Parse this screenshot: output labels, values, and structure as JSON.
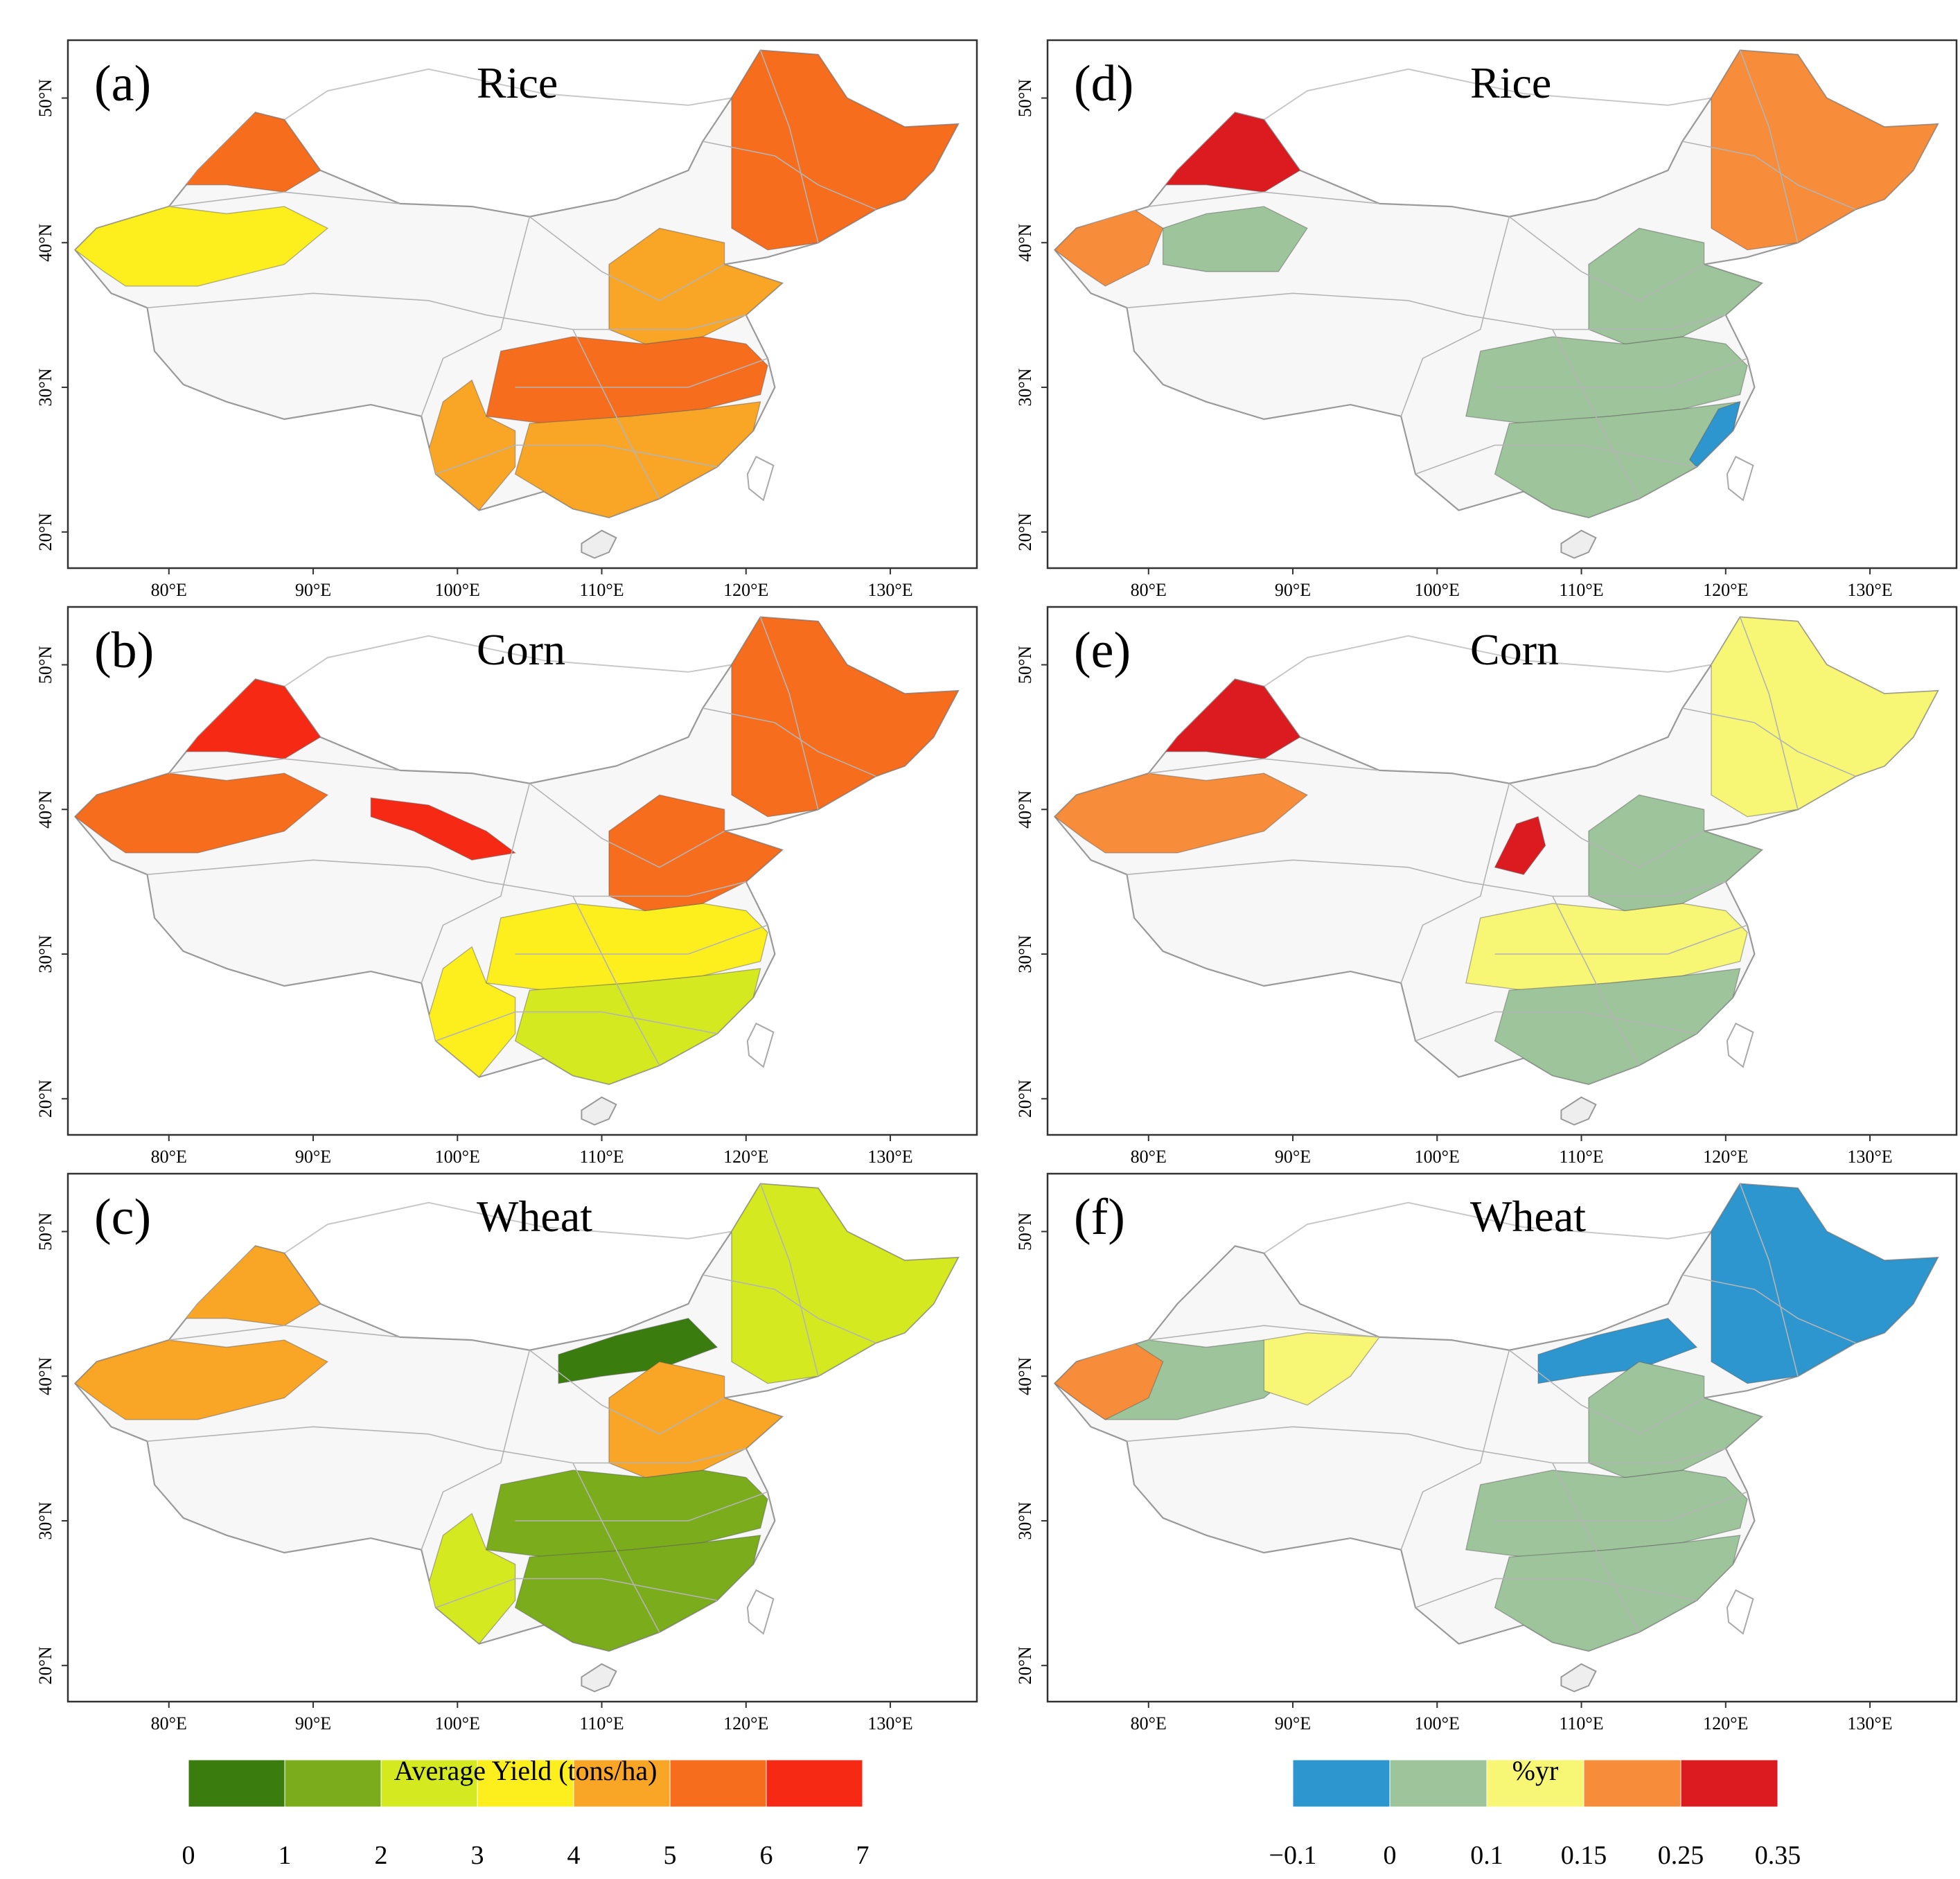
{
  "figure": {
    "axis_ticks": {
      "lon": [
        "80°E",
        "90°E",
        "100°E",
        "110°E",
        "120°E",
        "130°E"
      ],
      "lat": [
        "20°N",
        "30°N",
        "40°N",
        "50°N"
      ]
    },
    "panels": [
      {
        "id": "a",
        "letter": "(a)",
        "title": "Rice",
        "variable": "average_yield",
        "scale": "yield",
        "regions": [
          {
            "region": "Xinjiang north",
            "class": 5
          },
          {
            "region": "Xinjiang south",
            "class": 3
          },
          {
            "region": "Northeast",
            "class": 5
          },
          {
            "region": "North China Plain",
            "class": 4
          },
          {
            "region": "Yangtze basin",
            "class": 5
          },
          {
            "region": "South China",
            "class": 4
          },
          {
            "region": "Southwest",
            "class": 4
          }
        ]
      },
      {
        "id": "b",
        "letter": "(b)",
        "title": "Corn",
        "variable": "average_yield",
        "scale": "yield",
        "regions": [
          {
            "region": "Xinjiang north",
            "class": 6
          },
          {
            "region": "Xinjiang south",
            "class": 5
          },
          {
            "region": "Hexi corridor",
            "class": 6
          },
          {
            "region": "Northeast",
            "class": 5
          },
          {
            "region": "North China Plain",
            "class": 5
          },
          {
            "region": "Yangtze basin",
            "class": 3
          },
          {
            "region": "South China",
            "class": 2
          },
          {
            "region": "Southwest",
            "class": 3
          }
        ]
      },
      {
        "id": "c",
        "letter": "(c)",
        "title": "Wheat",
        "variable": "average_yield",
        "scale": "yield",
        "regions": [
          {
            "region": "Xinjiang north",
            "class": 4
          },
          {
            "region": "Xinjiang south",
            "class": 4
          },
          {
            "region": "Inner Mongolia",
            "class": 0
          },
          {
            "region": "Northeast",
            "class": 2
          },
          {
            "region": "North China Plain",
            "class": 4
          },
          {
            "region": "Yangtze basin",
            "class": 1
          },
          {
            "region": "South China",
            "class": 1
          },
          {
            "region": "Southwest",
            "class": 2
          }
        ]
      },
      {
        "id": "d",
        "letter": "(d)",
        "title": "Rice",
        "variable": "yield_trend",
        "scale": "trend",
        "regions": [
          {
            "region": "Xinjiang west",
            "class": 3
          },
          {
            "region": "Xinjiang north",
            "class": 4
          },
          {
            "region": "Xinjiang central",
            "class": 1
          },
          {
            "region": "Northeast",
            "class": 3
          },
          {
            "region": "North China Plain",
            "class": 1
          },
          {
            "region": "Yangtze basin",
            "class": 1
          },
          {
            "region": "South China",
            "class": 1
          },
          {
            "region": "Southeast coast",
            "class": 0
          }
        ]
      },
      {
        "id": "e",
        "letter": "(e)",
        "title": "Corn",
        "variable": "yield_trend",
        "scale": "trend",
        "regions": [
          {
            "region": "Xinjiang north",
            "class": 4
          },
          {
            "region": "Xinjiang south",
            "class": 3
          },
          {
            "region": "Ningxia",
            "class": 4
          },
          {
            "region": "Northeast",
            "class": 2
          },
          {
            "region": "North China Plain",
            "class": 1
          },
          {
            "region": "Yangtze basin",
            "class": 2
          },
          {
            "region": "South China",
            "class": 1
          }
        ]
      },
      {
        "id": "f",
        "letter": "(f)",
        "title": "Wheat",
        "variable": "yield_trend",
        "scale": "trend",
        "regions": [
          {
            "region": "Xinjiang west",
            "class": 3
          },
          {
            "region": "Xinjiang south",
            "class": 1
          },
          {
            "region": "Xinjiang east",
            "class": 2
          },
          {
            "region": "Inner Mongolia",
            "class": 0
          },
          {
            "region": "Northeast",
            "class": 0
          },
          {
            "region": "North China Plain",
            "class": 1
          },
          {
            "region": "Yangtze basin",
            "class": 1
          },
          {
            "region": "South China",
            "class": 1
          }
        ]
      }
    ],
    "legends": {
      "yield": {
        "title": "Average Yield (tons/ha)",
        "labels": [
          "0",
          "1",
          "2",
          "3",
          "4",
          "5",
          "6",
          "7"
        ],
        "colors": [
          "#3a7d0e",
          "#7aac1c",
          "#d5e920",
          "#fdef1e",
          "#f9a526",
          "#f76d1e",
          "#f62a14"
        ]
      },
      "trend": {
        "title": "%yr",
        "labels": [
          "−0.1",
          "0",
          "0.1",
          "0.15",
          "0.25",
          "0.35"
        ],
        "colors": [
          "#2e96cf",
          "#9dc49b",
          "#f7f675",
          "#f78d3a",
          "#dc1b20"
        ]
      }
    }
  }
}
